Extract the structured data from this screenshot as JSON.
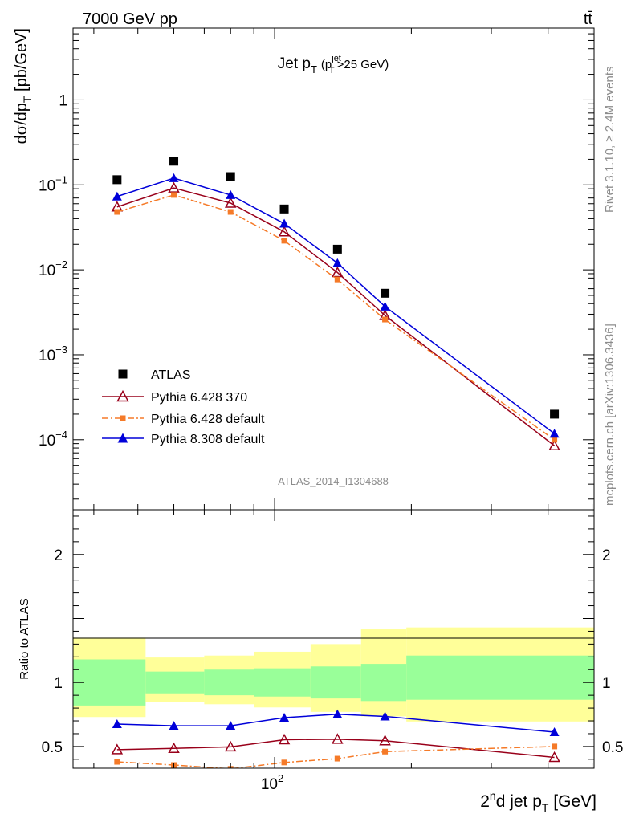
{
  "header": {
    "left": "7000 GeV pp",
    "right": "tt̄"
  },
  "side_text": {
    "rivet": "Rivet 3.1.10, ≥ 2.4M events",
    "mcplots": "mcplots.cern.ch [arXiv:1306.3436]"
  },
  "chart_data": [
    {
      "type": "scatter",
      "title": "Jet pT (pTjet>25 GeV)",
      "title_parts": {
        "main": "Jet p",
        "main_sub": "T",
        "paren_open": "(p",
        "paren_sup": "jet",
        "paren_sub": "T",
        "paren_close": ">25 GeV)"
      },
      "ylabel": "dσ/dpT [pb/GeV]",
      "ylabel_parts": {
        "pre": "dσ/dp",
        "sub": "T",
        "post": " [pb/GeV]"
      },
      "xlabel": "",
      "x_scale": "log",
      "y_scale": "log",
      "xlim": [
        36,
        505
      ],
      "ylim": [
        1.5e-05,
        7
      ],
      "y_ticks": [
        {
          "value": 1,
          "mantissa": "1",
          "exp": ""
        },
        {
          "value": 0.1,
          "mantissa": "10",
          "exp": "−1"
        },
        {
          "value": 0.01,
          "mantissa": "10",
          "exp": "−2"
        },
        {
          "value": 0.001,
          "mantissa": "10",
          "exp": "−3"
        },
        {
          "value": 0.0001,
          "mantissa": "10",
          "exp": "−4"
        }
      ],
      "x": [
        45,
        60,
        80,
        105,
        137.5,
        175,
        413
      ],
      "series": [
        {
          "name": "ATLAS",
          "color": "#000000",
          "marker": "square",
          "line": "none",
          "values": [
            0.115,
            0.19,
            0.125,
            0.052,
            0.0175,
            0.0053,
            0.0002
          ]
        },
        {
          "name": "Pythia 6.428 370",
          "color": "#99001a",
          "marker": "open-triangle",
          "line": "solid",
          "values": [
            0.055,
            0.092,
            0.061,
            0.028,
            0.0093,
            0.0029,
            8.5e-05
          ]
        },
        {
          "name": "Pythia 6.428 default",
          "color": "#f57a28",
          "marker": "square",
          "line": "dashdot",
          "values": [
            0.048,
            0.076,
            0.048,
            0.022,
            0.0077,
            0.0026,
            0.0001
          ]
        },
        {
          "name": "Pythia 8.308 default",
          "color": "#0000d9",
          "marker": "triangle",
          "line": "solid",
          "values": [
            0.073,
            0.12,
            0.076,
            0.035,
            0.012,
            0.0037,
            0.000118
          ]
        }
      ],
      "legend_position": "bottom-left",
      "annotation": "ATLAS_2014_I1304688"
    },
    {
      "type": "scatter",
      "ylabel": "Ratio to ATLAS",
      "xlabel": "2ndd jet pT [GeV]",
      "xlabel_parts": {
        "pre": "2",
        "sup": "n",
        "mid": "d jet p",
        "sub": "T",
        "post": " [GeV]"
      },
      "x_scale": "log",
      "xlim": [
        36,
        505
      ],
      "ylim": [
        0.33,
        2.35
      ],
      "y_ticks": [
        {
          "value": 0.5,
          "label": "0.5"
        },
        {
          "value": 1,
          "label": "1"
        },
        {
          "value": 2,
          "label": "2"
        }
      ],
      "x_ticks": [
        {
          "value": 100,
          "mantissa": "10",
          "exp": "2"
        }
      ],
      "bins": [
        {
          "x0": 36,
          "x1": 52,
          "green": [
            0.82,
            1.18
          ],
          "yellow": [
            0.73,
            1.35
          ]
        },
        {
          "x0": 52,
          "x1": 70,
          "green": [
            0.915,
            1.085
          ],
          "yellow": [
            0.845,
            1.195
          ]
        },
        {
          "x0": 70,
          "x1": 90,
          "green": [
            0.9,
            1.1
          ],
          "yellow": [
            0.83,
            1.21
          ]
        },
        {
          "x0": 90,
          "x1": 120,
          "green": [
            0.89,
            1.11
          ],
          "yellow": [
            0.805,
            1.24
          ]
        },
        {
          "x0": 120,
          "x1": 155,
          "green": [
            0.875,
            1.125
          ],
          "yellow": [
            0.77,
            1.3
          ]
        },
        {
          "x0": 155,
          "x1": 195,
          "green": [
            0.855,
            1.145
          ],
          "yellow": [
            0.735,
            1.415
          ]
        },
        {
          "x0": 195,
          "x1": 505,
          "green": [
            0.865,
            1.21
          ],
          "yellow": [
            0.695,
            1.43
          ]
        }
      ],
      "x": [
        45,
        60,
        80,
        105,
        137.5,
        175,
        413
      ],
      "series": [
        {
          "name": "Pythia 6.428 370",
          "color": "#99001a",
          "marker": "open-triangle",
          "line": "solid",
          "values": [
            0.475,
            0.485,
            0.497,
            0.553,
            0.557,
            0.545,
            0.415
          ]
        },
        {
          "name": "Pythia 6.428 default",
          "color": "#f57a28",
          "marker": "square",
          "line": "dashdot",
          "values": [
            0.38,
            0.355,
            0.325,
            0.375,
            0.405,
            0.46,
            0.5
          ]
        },
        {
          "name": "Pythia 8.308 default",
          "color": "#0000d9",
          "marker": "triangle",
          "line": "solid",
          "values": [
            0.675,
            0.662,
            0.662,
            0.725,
            0.752,
            0.735,
            0.612
          ]
        }
      ]
    }
  ]
}
